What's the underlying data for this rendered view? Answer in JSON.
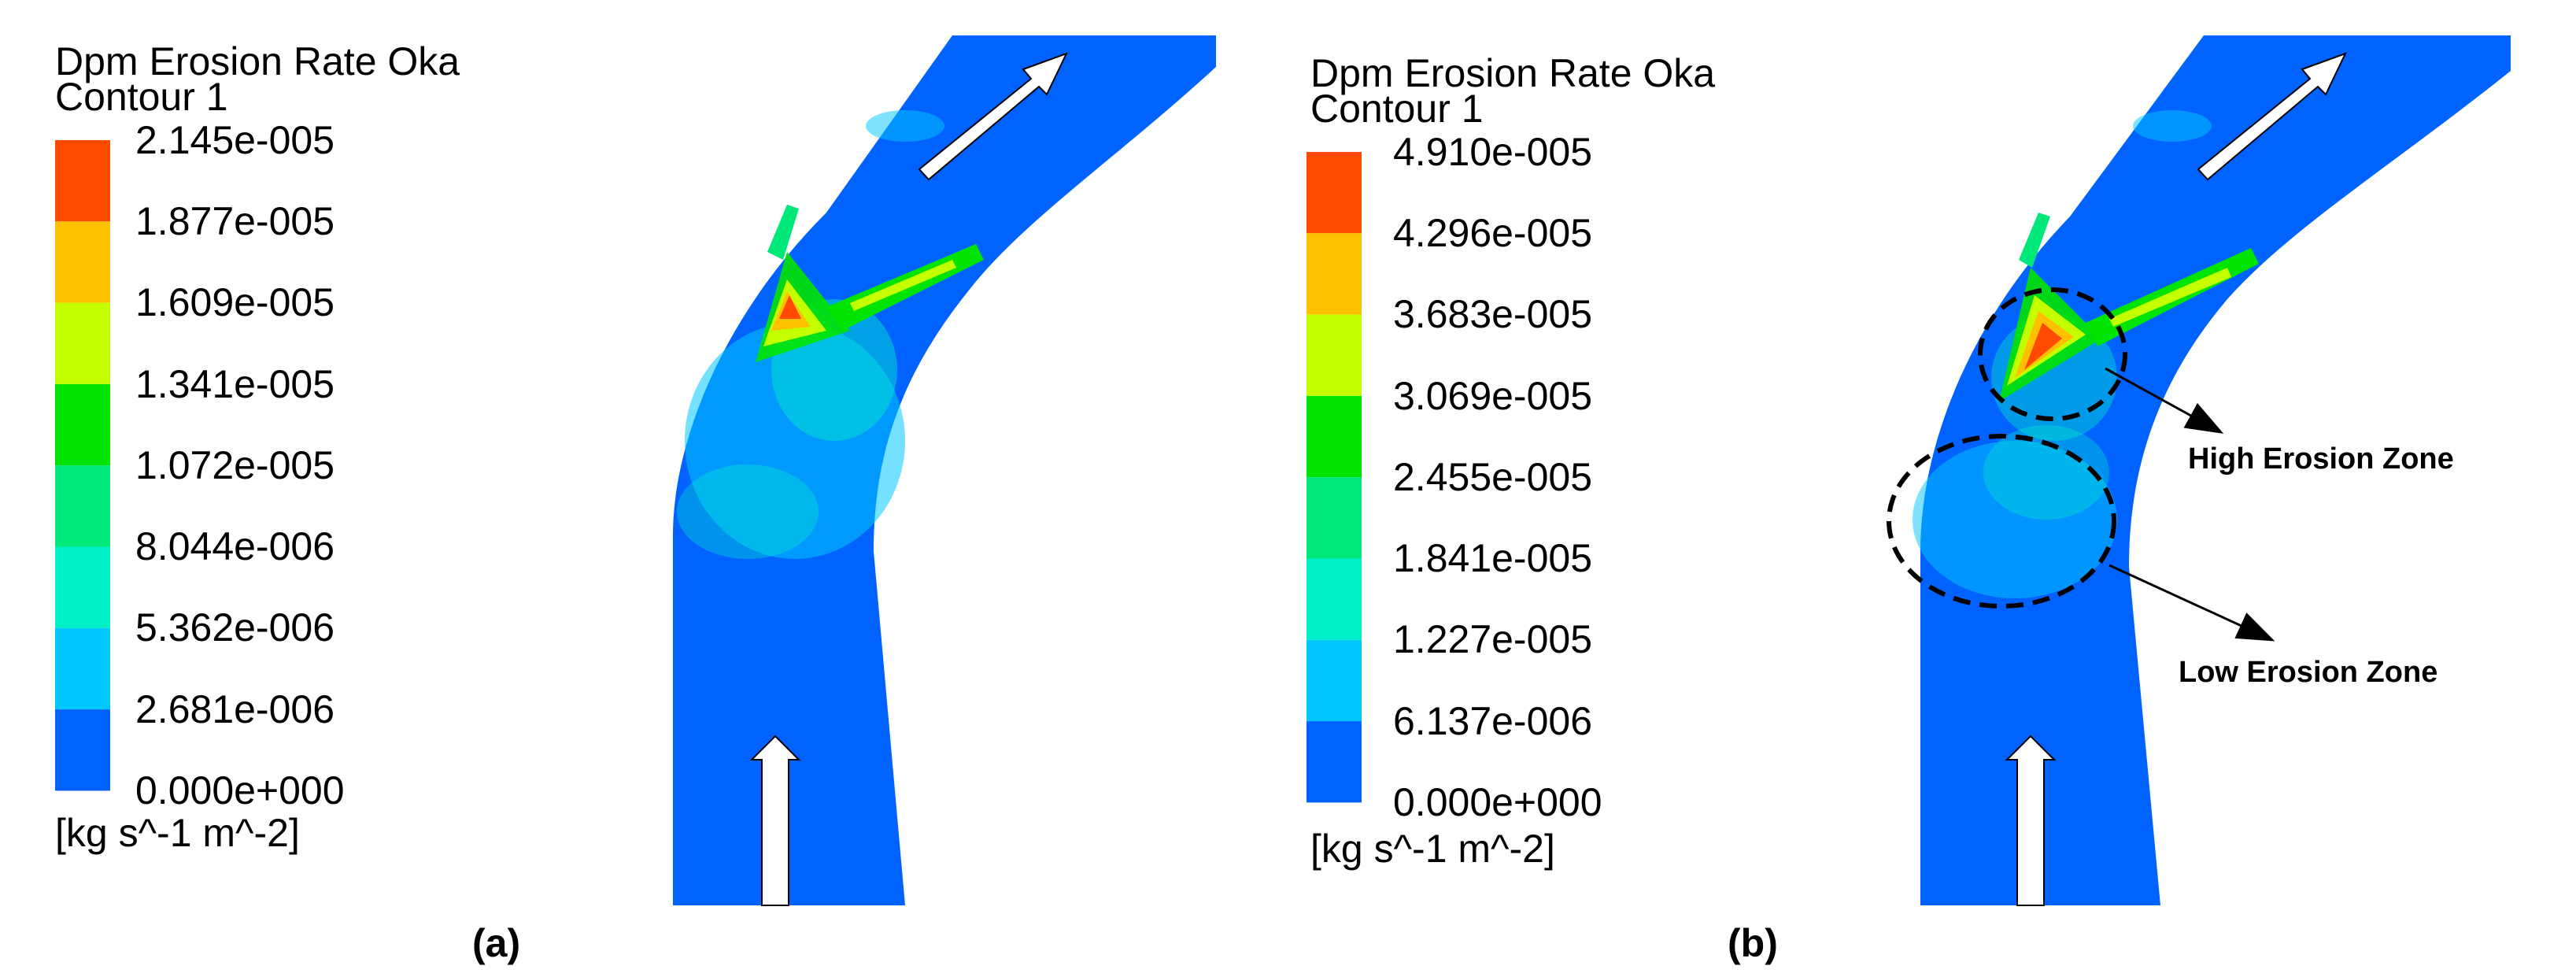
{
  "panels": [
    {
      "id": "a",
      "panel_label": "(a)",
      "legend": {
        "title": "Dpm Erosion Rate Oka",
        "subtitle": "Contour 1",
        "unit": "[kg s^-1 m^-2]",
        "ticks": [
          "2.145e-005",
          "1.877e-005",
          "1.609e-005",
          "1.341e-005",
          "1.072e-005",
          "8.044e-006",
          "5.362e-006",
          "2.681e-006",
          "0.000e+000"
        ]
      },
      "max_value": 2.145e-05,
      "annotations": []
    },
    {
      "id": "b",
      "panel_label": "(b)",
      "legend": {
        "title": "Dpm Erosion Rate Oka",
        "subtitle": "Contour 1",
        "unit": "[kg s^-1 m^-2]",
        "ticks": [
          "4.910e-005",
          "4.296e-005",
          "3.683e-005",
          "3.069e-005",
          "2.455e-005",
          "1.841e-005",
          "1.227e-005",
          "6.137e-006",
          "0.000e+000"
        ]
      },
      "max_value": 4.91e-05,
      "annotations": [
        {
          "label": "High Erosion Zone"
        },
        {
          "label": "Low Erosion Zone"
        }
      ]
    }
  ],
  "colormap": [
    "#ff4a00",
    "#ffc000",
    "#c4ff00",
    "#00e400",
    "#00e87a",
    "#00f0c8",
    "#00c8ff",
    "#0062ff"
  ]
}
